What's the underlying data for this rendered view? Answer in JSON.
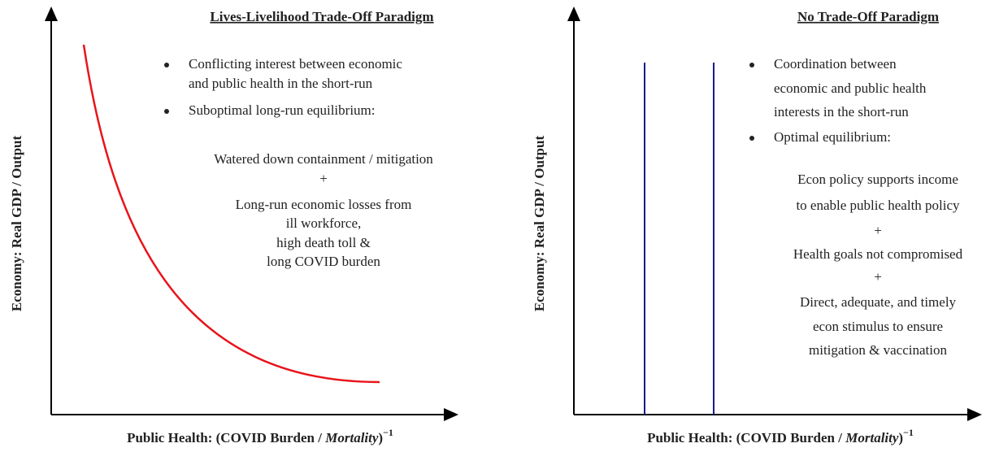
{
  "panels": [
    {
      "title": "Lives-Livelihood Trade-Off Paradigm",
      "bullets": [
        [
          "Conflicting interest between economic",
          "and public health in the short-run"
        ],
        [
          "Suboptimal long-run equilibrium:"
        ]
      ],
      "body": [
        "Watered down containment / mitigation",
        "+",
        "Long-run economic losses from",
        "ill workforce,",
        "high death toll &",
        "long COVID burden"
      ],
      "y_axis_label": "Economy: Real GDP / Output",
      "x_axis_label": {
        "prefix": "Public Health: ",
        "main": "(COVID Burden / ",
        "italic": "Mortality",
        "close": ")",
        "sup": "−1"
      }
    },
    {
      "title": "No Trade-Off Paradigm",
      "bullets": [
        [
          "Coordination between",
          "economic and public health",
          "interests in the short-run"
        ],
        [
          "Optimal equilibrium:"
        ]
      ],
      "body": [
        "Econ policy supports income",
        "to enable public health policy",
        "+",
        "Health goals not compromised",
        "+",
        "Direct, adequate, and timely",
        "econ stimulus to ensure",
        "mitigation & vaccination"
      ],
      "y_axis_label": "Economy: Real GDP / Output",
      "x_axis_label": {
        "prefix": "Public Health: ",
        "main": "(COVID Burden / ",
        "italic": "Mortality",
        "close": ")",
        "sup": "−1"
      }
    }
  ]
}
